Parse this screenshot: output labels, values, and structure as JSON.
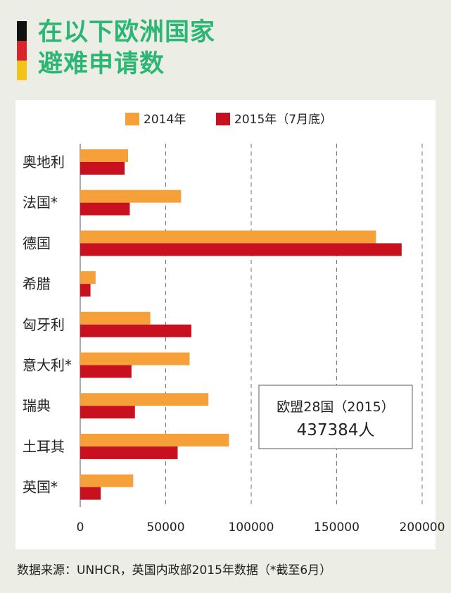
{
  "title": {
    "line1": "在以下欧洲国家",
    "line2": "避难申请数",
    "color": "#2bb673"
  },
  "flag_colors": [
    "#111111",
    "#d9232d",
    "#f2c318"
  ],
  "colors": {
    "series_2014": "#f6a03a",
    "series_2015": "#c8101f"
  },
  "chart_data": {
    "type": "bar",
    "orientation": "horizontal",
    "categories": [
      "奥地利",
      "法国*",
      "德国",
      "希腊",
      "匈牙利",
      "意大利*",
      "瑞典",
      "土耳其",
      "英国*"
    ],
    "series": [
      {
        "name": "2014年",
        "values": [
          28000,
          59000,
          173000,
          9000,
          41000,
          64000,
          75000,
          87000,
          31000
        ]
      },
      {
        "name": "2015年（7月底）",
        "values": [
          26000,
          29000,
          188000,
          6000,
          65000,
          30000,
          32000,
          57000,
          12000
        ]
      }
    ],
    "xlim": [
      0,
      200000
    ],
    "xticks": [
      "0",
      "50000",
      "100000",
      "150000",
      "200000"
    ],
    "xtick_values": [
      0,
      50000,
      100000,
      150000,
      200000
    ],
    "grid": "vertical dashed",
    "legend_position": "top",
    "annotation": {
      "line1": "欧盟28国（2015）",
      "line2": "437384人"
    }
  },
  "source": "数据来源：UNHCR，英国内政部2015年数据（*截至6月）"
}
